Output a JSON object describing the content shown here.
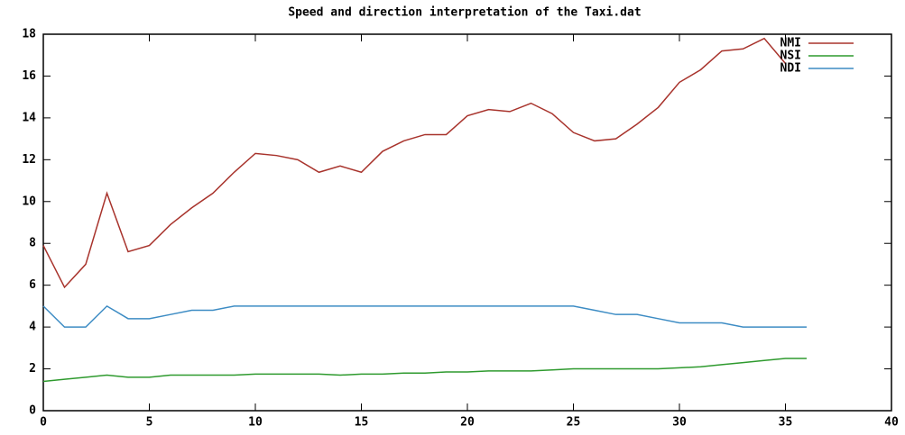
{
  "chart_data": {
    "type": "line",
    "title": "Speed and direction interpretation of the Taxi.dat",
    "x": [
      0,
      1,
      2,
      3,
      4,
      5,
      6,
      7,
      8,
      9,
      10,
      11,
      12,
      13,
      14,
      15,
      16,
      17,
      18,
      19,
      20,
      21,
      22,
      23,
      24,
      25,
      26,
      27,
      28,
      29,
      30,
      31,
      32,
      33,
      34,
      35,
      36
    ],
    "series": [
      {
        "name": "NMI",
        "color": "#a8332c",
        "values": [
          7.9,
          5.9,
          7.0,
          10.4,
          7.6,
          7.9,
          8.9,
          9.7,
          10.4,
          11.4,
          12.3,
          12.2,
          12.0,
          11.4,
          11.7,
          11.4,
          12.4,
          12.9,
          13.2,
          13.2,
          14.1,
          14.4,
          14.3,
          14.7,
          14.2,
          13.3,
          12.9,
          13.0,
          13.7,
          14.5,
          15.7,
          16.3,
          17.2,
          17.3,
          17.8,
          16.6,
          null
        ]
      },
      {
        "name": "NSI",
        "color": "#2e9a2e",
        "values": [
          1.4,
          1.5,
          1.6,
          1.7,
          1.6,
          1.6,
          1.7,
          1.7,
          1.7,
          1.7,
          1.75,
          1.75,
          1.75,
          1.75,
          1.7,
          1.75,
          1.75,
          1.8,
          1.8,
          1.85,
          1.85,
          1.9,
          1.9,
          1.9,
          1.95,
          2.0,
          2.0,
          2.0,
          2.0,
          2.0,
          2.05,
          2.1,
          2.2,
          2.3,
          2.4,
          2.5,
          2.5
        ]
      },
      {
        "name": "NDI",
        "color": "#3d8cc4",
        "values": [
          5,
          4,
          4,
          5,
          4.4,
          4.4,
          4.6,
          4.8,
          4.8,
          5,
          5,
          5,
          5,
          5,
          5,
          5,
          5,
          5,
          5,
          5,
          5,
          5,
          5,
          5,
          5,
          5,
          4.8,
          4.6,
          4.6,
          4.4,
          4.2,
          4.2,
          4.2,
          4.0,
          4,
          4,
          4
        ]
      }
    ],
    "xlim": [
      0,
      40
    ],
    "xticks": [
      0,
      5,
      10,
      15,
      20,
      25,
      30,
      35,
      40
    ],
    "ylim": [
      0,
      18
    ],
    "yticks": [
      0,
      2,
      4,
      6,
      8,
      10,
      12,
      14,
      16,
      18
    ],
    "legend": "top-right"
  }
}
